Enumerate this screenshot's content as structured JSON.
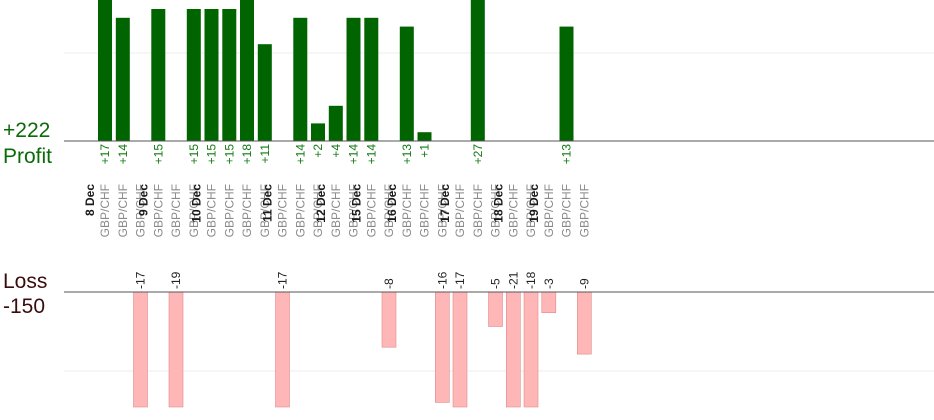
{
  "chart_data": {
    "type": "bar",
    "totals": {
      "profit": "+222",
      "profit_label": "Profit",
      "loss_label": "Loss",
      "loss": "-150"
    },
    "colors": {
      "profit": "#006400",
      "loss": "#ffb6b6",
      "loss_border": "#e08a8a"
    },
    "dates": [
      "8 Dec",
      "9 Dec",
      "10 Dec",
      "11 Dec",
      "12 Dec",
      "15 Dec",
      "16 Dec",
      "17 Dec",
      "18 Dec",
      "19 Dec"
    ],
    "pair": "GBP/CHF",
    "trades": [
      {
        "date": "8 Dec",
        "pair": "GBP/CHF",
        "value": 17,
        "label": "+17"
      },
      {
        "date": "8 Dec",
        "pair": "GBP/CHF",
        "value": 14,
        "label": "+14"
      },
      {
        "date": "8 Dec",
        "pair": "GBP/CHF",
        "value": -17,
        "label": "-17"
      },
      {
        "date": "9 Dec",
        "pair": "GBP/CHF",
        "value": 15,
        "label": "+15"
      },
      {
        "date": "9 Dec",
        "pair": "GBP/CHF",
        "value": -19,
        "label": "-19"
      },
      {
        "date": "9 Dec",
        "pair": "GBP/CHF",
        "value": 15,
        "label": "+15"
      },
      {
        "date": "10 Dec",
        "pair": "GBP/CHF",
        "value": 15,
        "label": "+15"
      },
      {
        "date": "10 Dec",
        "pair": "GBP/CHF",
        "value": 15,
        "label": "+15"
      },
      {
        "date": "10 Dec",
        "pair": "GBP/CHF",
        "value": 18,
        "label": "+18"
      },
      {
        "date": "10 Dec",
        "pair": "GBP/CHF",
        "value": 11,
        "label": "+11"
      },
      {
        "date": "11 Dec",
        "pair": "GBP/CHF",
        "value": -17,
        "label": "-17"
      },
      {
        "date": "11 Dec",
        "pair": "GBP/CHF",
        "value": 14,
        "label": "+14"
      },
      {
        "date": "11 Dec",
        "pair": "GBP/CHF",
        "value": 2,
        "label": "+2"
      },
      {
        "date": "12 Dec",
        "pair": "GBP/CHF",
        "value": 4,
        "label": "+4"
      },
      {
        "date": "12 Dec",
        "pair": "GBP/CHF",
        "value": 14,
        "label": "+14"
      },
      {
        "date": "15 Dec",
        "pair": "GBP/CHF",
        "value": 14,
        "label": "+14"
      },
      {
        "date": "15 Dec",
        "pair": "GBP/CHF",
        "value": -8,
        "label": "-8"
      },
      {
        "date": "16 Dec",
        "pair": "GBP/CHF",
        "value": 13,
        "label": "+13"
      },
      {
        "date": "16 Dec",
        "pair": "GBP/CHF",
        "value": 1,
        "label": "+1"
      },
      {
        "date": "16 Dec",
        "pair": "GBP/CHF",
        "value": -16,
        "label": "-16"
      },
      {
        "date": "17 Dec",
        "pair": "GBP/CHF",
        "value": -17,
        "label": "-17"
      },
      {
        "date": "17 Dec",
        "pair": "GBP/CHF",
        "value": 27,
        "label": "+27"
      },
      {
        "date": "17 Dec",
        "pair": "GBP/CHF",
        "value": -5,
        "label": "-5"
      },
      {
        "date": "18 Dec",
        "pair": "GBP/CHF",
        "value": -21,
        "label": "-21"
      },
      {
        "date": "18 Dec",
        "pair": "GBP/CHF",
        "value": -18,
        "label": "-18"
      },
      {
        "date": "19 Dec",
        "pair": "GBP/CHF",
        "value": -3,
        "label": "-3"
      },
      {
        "date": "19 Dec",
        "pair": "GBP/CHF",
        "value": 13,
        "label": "+13"
      },
      {
        "date": "19 Dec",
        "pair": "GBP/CHF",
        "value": -9,
        "label": "-9"
      }
    ]
  }
}
